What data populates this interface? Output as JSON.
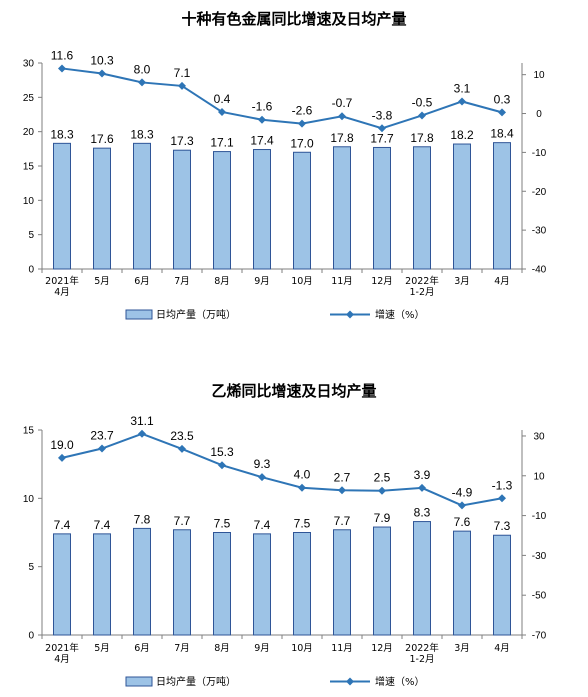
{
  "chart_data": [
    {
      "type": "bar",
      "title": "十种有色金属同比增速及日均产量",
      "categories": [
        [
          "2021年",
          "4月"
        ],
        [
          "5月"
        ],
        [
          "6月"
        ],
        [
          "7月"
        ],
        [
          "8月"
        ],
        [
          "9月"
        ],
        [
          "10月"
        ],
        [
          "11月"
        ],
        [
          "12月"
        ],
        [
          "2022年",
          "1-2月"
        ],
        [
          "3月"
        ],
        [
          "4月"
        ]
      ],
      "left_axis": {
        "ylim": [
          0,
          30
        ],
        "ticks": [
          "0",
          "5",
          "10",
          "15",
          "20",
          "25",
          "30"
        ]
      },
      "right_axis": {
        "ylim": [
          -40,
          13
        ],
        "ticks": [
          "-40",
          "-30",
          "-20",
          "-10",
          "0",
          "10"
        ]
      },
      "series": [
        {
          "name": "日均产量（万吨）",
          "type": "bar",
          "axis": "left",
          "values": [
            18.3,
            17.6,
            18.3,
            17.3,
            17.1,
            17.4,
            17.0,
            17.8,
            17.7,
            17.8,
            18.2,
            18.4
          ],
          "labels": [
            "18.3",
            "17.6",
            "18.3",
            "17.3",
            "17.1",
            "17.4",
            "17.0",
            "17.8",
            "17.7",
            "17.8",
            "18.2",
            "18.4"
          ]
        },
        {
          "name": "增速（%）",
          "type": "line",
          "axis": "right",
          "values": [
            11.6,
            10.3,
            8.0,
            7.1,
            0.4,
            -1.6,
            -2.6,
            -0.7,
            -3.8,
            -0.5,
            3.1,
            0.3
          ],
          "labels": [
            "11.6",
            "10.3",
            "8.0",
            "7.1",
            "0.4",
            "-1.6",
            "-2.6",
            "-0.7",
            "-3.8",
            "-0.5",
            "3.1",
            "0.3"
          ]
        }
      ],
      "legend": {
        "bar": "日均产量（万吨）",
        "line": "增速（%）",
        "placement": "bottom"
      },
      "grid": false
    },
    {
      "type": "bar",
      "title": "乙烯同比增速及日均产量",
      "categories": [
        [
          "2021年",
          "4月"
        ],
        [
          "5月"
        ],
        [
          "6月"
        ],
        [
          "7月"
        ],
        [
          "8月"
        ],
        [
          "9月"
        ],
        [
          "10月"
        ],
        [
          "11月"
        ],
        [
          "12月"
        ],
        [
          "2022年",
          "1-2月"
        ],
        [
          "3月"
        ],
        [
          "4月"
        ]
      ],
      "left_axis": {
        "ylim": [
          0,
          15
        ],
        "ticks": [
          "0",
          "5",
          "10",
          "15"
        ]
      },
      "right_axis": {
        "ylim": [
          -70,
          33
        ],
        "ticks": [
          "-70",
          "-50",
          "-30",
          "-10",
          "10",
          "30"
        ]
      },
      "series": [
        {
          "name": "日均产量（万吨）",
          "type": "bar",
          "axis": "left",
          "values": [
            7.4,
            7.4,
            7.8,
            7.7,
            7.5,
            7.4,
            7.5,
            7.7,
            7.9,
            8.3,
            7.6,
            7.3
          ],
          "labels": [
            "7.4",
            "7.4",
            "7.8",
            "7.7",
            "7.5",
            "7.4",
            "7.5",
            "7.7",
            "7.9",
            "8.3",
            "7.6",
            "7.3"
          ]
        },
        {
          "name": "增速（%）",
          "type": "line",
          "axis": "right",
          "values": [
            19.0,
            23.7,
            31.1,
            23.5,
            15.3,
            9.3,
            4.0,
            2.7,
            2.5,
            3.9,
            -4.9,
            -1.3
          ],
          "labels": [
            "19.0",
            "23.7",
            "31.1",
            "23.5",
            "15.3",
            "9.3",
            "4.0",
            "2.7",
            "2.5",
            "3.9",
            "-4.9",
            "-1.3"
          ]
        }
      ],
      "legend": {
        "bar": "日均产量（万吨）",
        "line": "增速（%）",
        "placement": "bottom"
      },
      "grid": false
    }
  ],
  "colors": {
    "bar_fill": "#9dc3e6",
    "bar_stroke": "#2f5597",
    "line": "#2e75b6",
    "axis": "#7f7f7f"
  }
}
